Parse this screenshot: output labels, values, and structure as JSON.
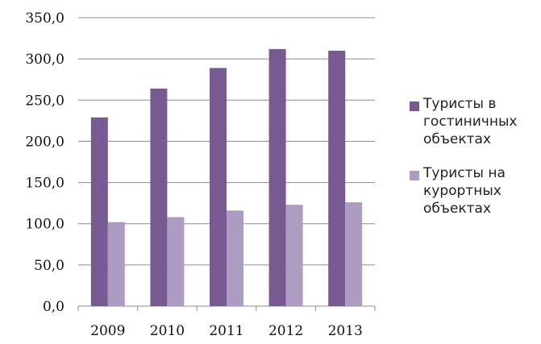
{
  "chart_data": {
    "type": "bar",
    "categories": [
      "2009",
      "2010",
      "2011",
      "2012",
      "2013"
    ],
    "series": [
      {
        "name": "Туристы в гостиничных объектах",
        "values": [
          229,
          264,
          289,
          312,
          310
        ],
        "color": "#765a91"
      },
      {
        "name": "Туристы на курортных объектах",
        "values": [
          102,
          108,
          116,
          123,
          126
        ],
        "color": "#ad9cc2"
      }
    ],
    "y_tick_labels": [
      "0,0",
      "50,0",
      "100,0",
      "150,0",
      "200,0",
      "250,0",
      "300,0",
      "350,0"
    ],
    "ylim": [
      0,
      350
    ],
    "y_step": 50,
    "grid": true,
    "legend_position": "right",
    "title": "",
    "xlabel": "",
    "ylabel": ""
  }
}
